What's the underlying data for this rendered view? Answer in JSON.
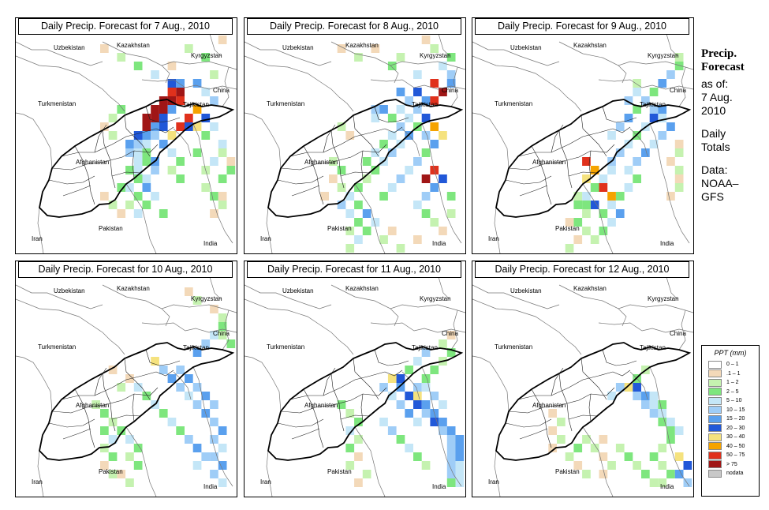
{
  "panels": [
    {
      "title": "Daily Precip. Forecast for  7 Aug., 2010"
    },
    {
      "title": "Daily Precip. Forecast for  8 Aug., 2010"
    },
    {
      "title": "Daily Precip. Forecast for  9 Aug., 2010"
    },
    {
      "title": "Daily Precip. Forecast for  10 Aug., 2010"
    },
    {
      "title": "Daily Precip. Forecast for  11 Aug., 2010"
    },
    {
      "title": "Daily Precip. Forecast for  12 Aug., 2010"
    }
  ],
  "map_labels": {
    "uzbekistan": "Uzbekistan",
    "kazakhstan": "Kazakhstan",
    "kyrgyzstan": "Kyrgyzstan",
    "turkmenistan": "Turkmenistan",
    "china": "China",
    "tajikistan": "Tajikistan",
    "afghanistan": "Afghanistan",
    "pakistan": "Pakistan",
    "iran": "Iran",
    "india": "India"
  },
  "side": {
    "title_line1": "Precip.",
    "title_line2": "Forecast",
    "asof_line1": "as of:",
    "asof_line2": "7 Aug.",
    "asof_line3": "2010",
    "totals_line1": "Daily",
    "totals_line2": "Totals",
    "data_line1": "Data:",
    "data_line2": "NOAA–",
    "data_line3": "GFS"
  },
  "legend": {
    "title": "PPT (mm)",
    "classes": [
      {
        "label": "0 – 1",
        "color": "#ffffff"
      },
      {
        "label": ".1 – 1",
        "color": "#f3d9b9"
      },
      {
        "label": "1 – 2",
        "color": "#c5f2b0"
      },
      {
        "label": "2 – 5",
        "color": "#7ee67e"
      },
      {
        "label": "5 – 10",
        "color": "#c4e6f7"
      },
      {
        "label": "10 – 15",
        "color": "#9fcdf7"
      },
      {
        "label": "15 – 20",
        "color": "#5aa0ee"
      },
      {
        "label": "20 – 30",
        "color": "#2158d8"
      },
      {
        "label": "30 – 40",
        "color": "#f5e27e"
      },
      {
        "label": "40 – 50",
        "color": "#f5a300"
      },
      {
        "label": "50 – 75",
        "color": "#e0311c"
      },
      {
        "label": "> 75",
        "color": "#a01616"
      },
      {
        "label": "nodata",
        "color": "#c8c8c8"
      }
    ]
  }
}
